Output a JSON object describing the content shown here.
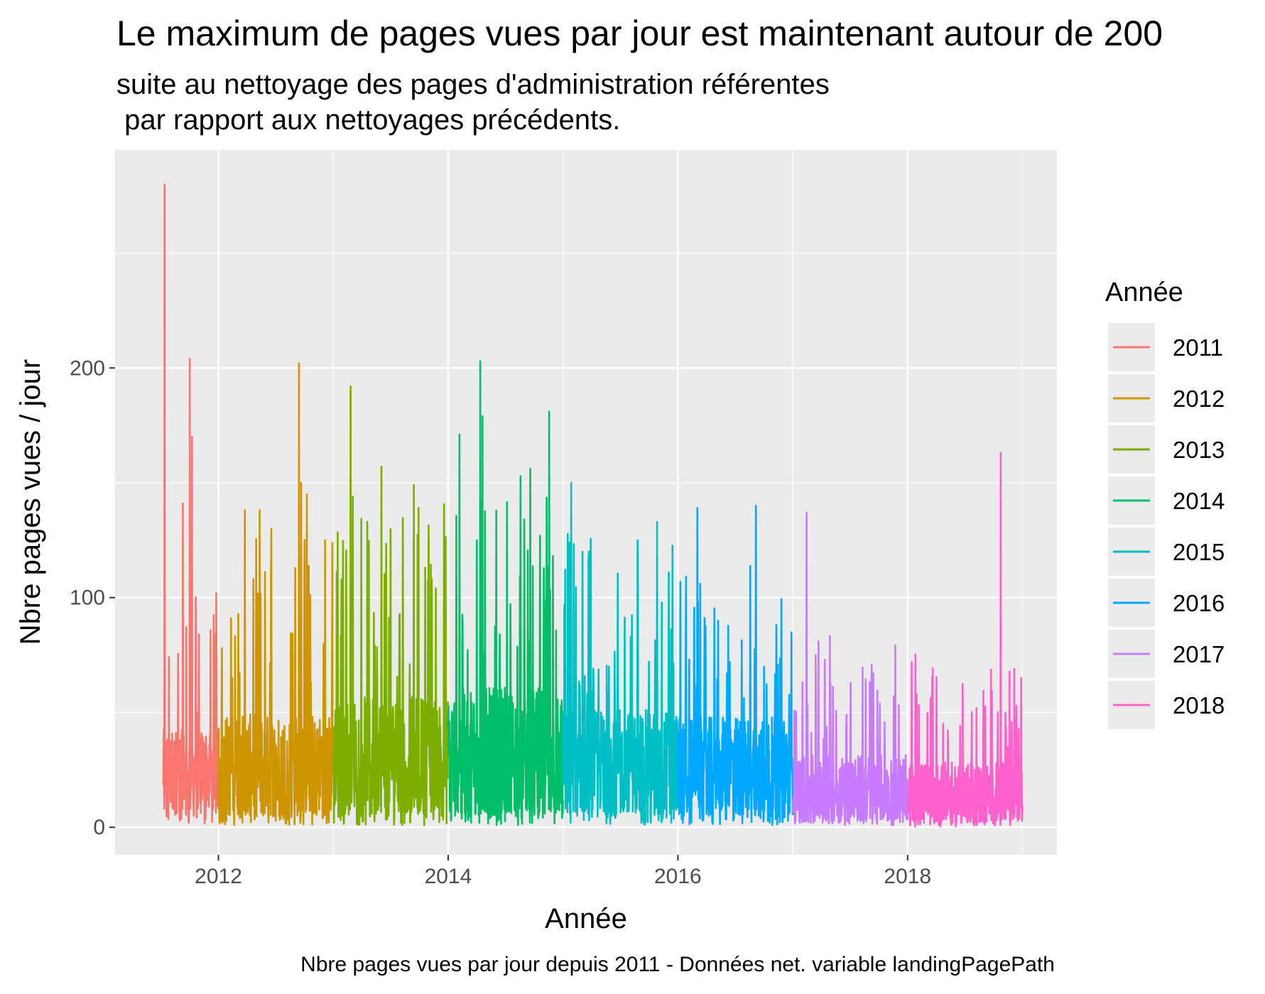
{
  "chart_data": {
    "type": "line",
    "title": "Le maximum de pages vues par jour est maintenant autour de 200",
    "subtitle": "suite au nettoyage des pages d'administration référentes\n par rapport aux nettoyages précédents.",
    "xlabel": "Année",
    "ylabel": "Nbre pages vues / jour",
    "caption": "Nbre pages vues par jour depuis 2011 - Données net. variable landingPagePath",
    "xlim": [
      2011.1,
      2019.3
    ],
    "ylim": [
      -12,
      295
    ],
    "x_ticks": [
      2012,
      2014,
      2016,
      2018
    ],
    "y_ticks": [
      0,
      100,
      200
    ],
    "grid": true,
    "legend": {
      "title": "Année",
      "position": "right"
    },
    "series": [
      {
        "name": "2011",
        "color": "#F8766D",
        "x_start": 2011.52,
        "x_end": 2012.0,
        "peaks": [
          [
            2011.53,
            280
          ],
          [
            2011.75,
            204
          ],
          [
            2011.77,
            170
          ],
          [
            2011.69,
            141
          ],
          [
            2011.83,
            84
          ],
          [
            2011.98,
            102
          ]
        ],
        "base": 20,
        "spread": 35
      },
      {
        "name": "2012",
        "color": "#CD9600",
        "x_start": 2012.0,
        "x_end": 2013.0,
        "peaks": [
          [
            2012.7,
            202
          ],
          [
            2012.72,
            150
          ],
          [
            2012.23,
            138
          ],
          [
            2012.36,
            138
          ],
          [
            2012.77,
            145
          ],
          [
            2012.46,
            130
          ],
          [
            2012.93,
            125
          ],
          [
            2012.03,
            78
          ]
        ],
        "base": 20,
        "spread": 45
      },
      {
        "name": "2013",
        "color": "#7CAE00",
        "x_start": 2013.0,
        "x_end": 2014.0,
        "peaks": [
          [
            2013.15,
            192
          ],
          [
            2013.17,
            144
          ],
          [
            2013.42,
            157
          ],
          [
            2013.7,
            149
          ],
          [
            2013.8,
            113
          ],
          [
            2013.07,
            108
          ]
        ],
        "base": 25,
        "spread": 50
      },
      {
        "name": "2014",
        "color": "#00BE67",
        "x_start": 2014.0,
        "x_end": 2015.0,
        "peaks": [
          [
            2014.28,
            203
          ],
          [
            2014.3,
            179
          ],
          [
            2014.1,
            171
          ],
          [
            2014.25,
            125
          ],
          [
            2014.88,
            181
          ],
          [
            2014.8,
            127
          ],
          [
            2014.45,
            84
          ]
        ],
        "base": 25,
        "spread": 55
      },
      {
        "name": "2015",
        "color": "#00BFC4",
        "x_start": 2015.0,
        "x_end": 2016.0,
        "peaks": [
          [
            2015.07,
            150
          ],
          [
            2015.17,
            120
          ],
          [
            2015.65,
            125
          ],
          [
            2015.82,
            133
          ],
          [
            2015.92,
            111
          ],
          [
            2015.4,
            70
          ]
        ],
        "base": 22,
        "spread": 45
      },
      {
        "name": "2016",
        "color": "#00A9FF",
        "x_start": 2016.0,
        "x_end": 2017.0,
        "peaks": [
          [
            2016.17,
            139
          ],
          [
            2016.68,
            140
          ],
          [
            2016.35,
            90
          ],
          [
            2016.1,
            73
          ],
          [
            2016.75,
            70
          ]
        ],
        "base": 22,
        "spread": 40
      },
      {
        "name": "2017",
        "color": "#C77CFF",
        "x_start": 2017.0,
        "x_end": 2018.0,
        "peaks": [
          [
            2017.12,
            137
          ],
          [
            2017.2,
            75
          ],
          [
            2017.28,
            73
          ],
          [
            2017.7,
            67
          ],
          [
            2017.88,
            57
          ]
        ],
        "base": 12,
        "spread": 30
      },
      {
        "name": "2018",
        "color": "#FF61CC",
        "x_start": 2018.0,
        "x_end": 2019.0,
        "peaks": [
          [
            2018.81,
            163
          ],
          [
            2018.93,
            69
          ],
          [
            2018.99,
            65
          ],
          [
            2018.08,
            58
          ],
          [
            2018.6,
            52
          ]
        ],
        "base": 10,
        "spread": 28
      }
    ]
  }
}
